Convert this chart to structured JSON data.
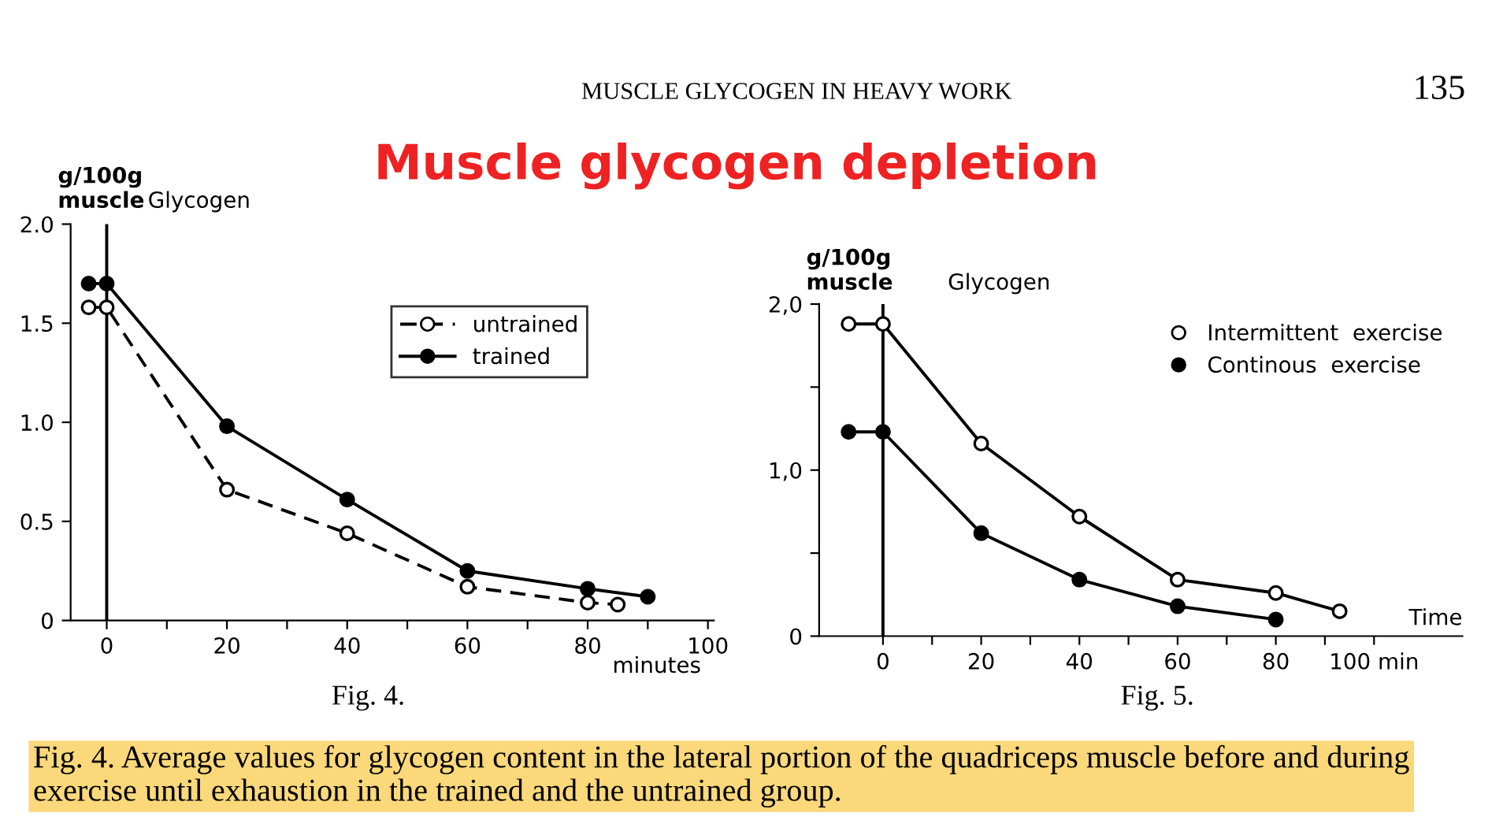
{
  "chart_data": [
    {
      "type": "line",
      "title": "Muscle glycogen depletion",
      "subtitle": "Glycogen",
      "ylabel": "g/100g\nmuscle",
      "xlabel": "minutes",
      "annotations": [
        "MUSCLE GLYCOGEN IN HEAVY WORK",
        "135",
        "Fig. 4.",
        "Fig. 4. Average values for glycogen content in the lateral portion of the quadriceps muscle before and during exercise until exhaustion in the trained and the untrained group."
      ],
      "series": [
        {
          "name": "untrained",
          "color": "#000000",
          "colors": [
            "#ffffff",
            "#ffffff",
            "#ffffff",
            "#ffffff",
            "#ffffff",
            "#ffffff",
            "#ffffff"
          ],
          "line_style": "dashed",
          "x": [
            -3,
            0,
            20,
            40,
            60,
            80,
            85
          ],
          "values": [
            1.58,
            1.58,
            0.66,
            0.44,
            0.17,
            0.09,
            0.08
          ]
        },
        {
          "name": "trained",
          "color": "#000000",
          "line_style": "solid",
          "x": [
            -3,
            0,
            20,
            40,
            60,
            80,
            90
          ],
          "values": [
            1.7,
            1.7,
            0.98,
            0.61,
            0.25,
            0.16,
            0.12
          ]
        }
      ],
      "xlim": [
        -6,
        101
      ],
      "ylim": [
        0,
        2.0
      ],
      "xticks": [
        0,
        {
          "value": 10,
          "label": null
        },
        20,
        {
          "value": 30,
          "label": null
        },
        40,
        {
          "value": 50,
          "label": null
        },
        60,
        {
          "value": 70,
          "label": null
        },
        80,
        {
          "value": 90,
          "label": null
        },
        100
      ],
      "yticks": [
        0,
        0.5,
        {
          "value": 1.0,
          "label": "1.0"
        },
        1.5,
        {
          "value": 2.0,
          "label": "2.0"
        }
      ],
      "ref_lines": [
        {
          "axis": "x",
          "value": 0,
          "color": "#000000"
        }
      ],
      "marker": "circle",
      "legend": "top right",
      "grid": false
    },
    {
      "type": "line",
      "subtitle": "Glycogen",
      "ylabel": "g/100g\nmuscle",
      "xlabel": "Time",
      "annotations": [
        "Fig. 5."
      ],
      "series": [
        {
          "name": "Intermittent  exercise",
          "color": "#000000",
          "colors": [
            "#ffffff",
            "#ffffff",
            "#ffffff",
            "#ffffff",
            "#ffffff",
            "#ffffff",
            "#ffffff"
          ],
          "line_style": "solid",
          "x": [
            -7,
            0,
            20,
            40,
            60,
            80,
            93
          ],
          "values": [
            1.88,
            1.88,
            1.16,
            0.72,
            0.34,
            0.26,
            0.15
          ]
        },
        {
          "name": "Continous  exercise",
          "color": "#000000",
          "line_style": "solid",
          "x": [
            -7,
            0,
            20,
            40,
            60,
            80
          ],
          "values": [
            1.23,
            1.23,
            0.62,
            0.34,
            0.18,
            0.1
          ]
        }
      ],
      "xlim": [
        -13,
        118
      ],
      "ylim": [
        0,
        2.0
      ],
      "xticks": [
        0,
        {
          "value": 10,
          "label": null
        },
        20,
        {
          "value": 30,
          "label": null
        },
        40,
        {
          "value": 50,
          "label": null
        },
        60,
        {
          "value": 70,
          "label": null
        },
        80,
        {
          "value": 90,
          "label": null
        },
        {
          "value": 100,
          "label": "100 min"
        }
      ],
      "yticks": [
        0,
        {
          "value": 0.5,
          "label": null
        },
        {
          "value": 1.0,
          "label": "1,0"
        },
        {
          "value": 1.5,
          "label": null
        },
        {
          "value": 2.0,
          "label": "2,0"
        }
      ],
      "ref_lines": [
        {
          "axis": "x",
          "value": 0,
          "color": "#000000"
        }
      ],
      "marker": "circle",
      "legend": "top right",
      "grid": false
    }
  ]
}
